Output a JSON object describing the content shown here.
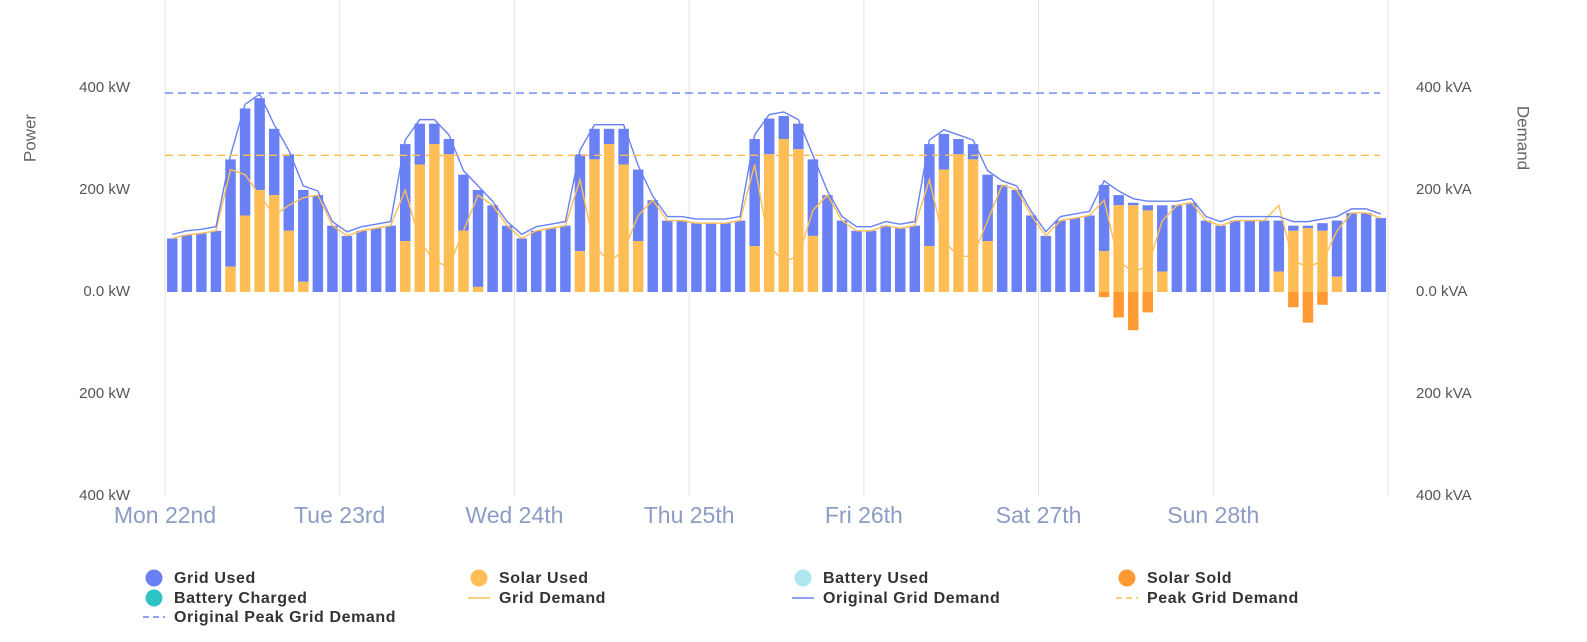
{
  "chart_data": {
    "type": "bar",
    "ylabel": "Power",
    "y2label": "Demand",
    "xlim": [
      0,
      168
    ],
    "xticks": [
      {
        "value": 0,
        "label": "Mon 22nd"
      },
      {
        "value": 24,
        "label": "Tue 23rd"
      },
      {
        "value": 48,
        "label": "Wed 24th"
      },
      {
        "value": 72,
        "label": "Thu 25th"
      },
      {
        "value": 96,
        "label": "Fri 26th"
      },
      {
        "value": 120,
        "label": "Sat 27th"
      },
      {
        "value": 144,
        "label": "Sun 28th"
      }
    ],
    "ylim": [
      -400,
      400
    ],
    "yticks": [
      {
        "value": 400,
        "label": "400 kW"
      },
      {
        "value": 200,
        "label": "200 kW"
      },
      {
        "value": 0,
        "label": "0.0 kW"
      },
      {
        "value": -200,
        "label": "200 kW"
      },
      {
        "value": -400,
        "label": "400 kW"
      }
    ],
    "y2lim": [
      -400,
      400
    ],
    "y2ticks": [
      {
        "value": 400,
        "label": "400 kVA"
      },
      {
        "value": 200,
        "label": "200 kVA"
      },
      {
        "value": 0,
        "label": "0.0 kVA"
      },
      {
        "value": -200,
        "label": "200 kVA"
      },
      {
        "value": -400,
        "label": "400 kVA"
      }
    ],
    "grid": true,
    "x": [
      1,
      3,
      5,
      7,
      9,
      11,
      13,
      15,
      17,
      19,
      21,
      23,
      25,
      27,
      29,
      31,
      33,
      35,
      37,
      39,
      41,
      43,
      45,
      47,
      49,
      51,
      53,
      55,
      57,
      59,
      61,
      63,
      65,
      67,
      69,
      71,
      73,
      75,
      77,
      79,
      81,
      83,
      85,
      87,
      89,
      91,
      93,
      95,
      97,
      99,
      101,
      103,
      105,
      107,
      109,
      111,
      113,
      115,
      117,
      119,
      121,
      123,
      125,
      127,
      129,
      131,
      133,
      135,
      137,
      139,
      141,
      143,
      145,
      147,
      149,
      151,
      153,
      155,
      157,
      159,
      161,
      163,
      165,
      167
    ],
    "series": [
      {
        "name": "Grid Used",
        "kind": "bar",
        "color": "#6a80f5",
        "stack_on": 1,
        "values": [
          105,
          112,
          115,
          120,
          210,
          210,
          180,
          130,
          150,
          180,
          190,
          130,
          110,
          120,
          125,
          130,
          190,
          80,
          40,
          30,
          110,
          190,
          170,
          130,
          105,
          120,
          125,
          130,
          190,
          60,
          30,
          70,
          140,
          180,
          140,
          140,
          135,
          135,
          135,
          140,
          210,
          70,
          45,
          50,
          150,
          190,
          140,
          120,
          120,
          130,
          125,
          130,
          200,
          70,
          30,
          30,
          130,
          210,
          200,
          150,
          110,
          140,
          145,
          150,
          130,
          20,
          5,
          10,
          130,
          170,
          175,
          140,
          130,
          140,
          140,
          140,
          100,
          10,
          5,
          15,
          110,
          155,
          155,
          145
        ]
      },
      {
        "name": "Solar Used",
        "kind": "bar",
        "color": "#ffbe55",
        "values": [
          0,
          0,
          0,
          0,
          50,
          150,
          200,
          190,
          120,
          20,
          0,
          0,
          0,
          0,
          0,
          0,
          100,
          250,
          290,
          270,
          120,
          10,
          0,
          0,
          0,
          0,
          0,
          0,
          80,
          260,
          290,
          250,
          100,
          0,
          0,
          0,
          0,
          0,
          0,
          0,
          90,
          270,
          300,
          280,
          110,
          0,
          0,
          0,
          0,
          0,
          0,
          0,
          90,
          240,
          270,
          260,
          100,
          0,
          0,
          0,
          0,
          0,
          0,
          0,
          80,
          170,
          170,
          160,
          40,
          0,
          0,
          0,
          0,
          0,
          0,
          0,
          40,
          120,
          125,
          120,
          30,
          0,
          0,
          0
        ]
      },
      {
        "name": "Battery Used",
        "kind": "bar",
        "color": "#aee8ec",
        "values": [
          0,
          0,
          0,
          0,
          0,
          0,
          0,
          0,
          0,
          0,
          0,
          0,
          0,
          0,
          0,
          0,
          0,
          0,
          0,
          0,
          0,
          0,
          0,
          0,
          0,
          0,
          0,
          0,
          0,
          0,
          0,
          0,
          0,
          0,
          0,
          0,
          0,
          0,
          0,
          0,
          0,
          0,
          0,
          0,
          0,
          0,
          0,
          0,
          0,
          0,
          0,
          0,
          0,
          0,
          0,
          0,
          0,
          0,
          0,
          0,
          0,
          0,
          0,
          0,
          0,
          0,
          0,
          0,
          0,
          0,
          0,
          0,
          0,
          0,
          0,
          0,
          0,
          0,
          0,
          0,
          0,
          0,
          0,
          0
        ]
      },
      {
        "name": "Solar Sold",
        "kind": "bar",
        "color": "#ff9a33",
        "values": [
          0,
          0,
          0,
          0,
          0,
          0,
          0,
          0,
          0,
          0,
          0,
          0,
          0,
          0,
          0,
          0,
          0,
          0,
          0,
          0,
          0,
          0,
          0,
          0,
          0,
          0,
          0,
          0,
          0,
          0,
          0,
          0,
          0,
          0,
          0,
          0,
          0,
          0,
          0,
          0,
          0,
          0,
          0,
          0,
          0,
          0,
          0,
          0,
          0,
          0,
          0,
          0,
          0,
          0,
          0,
          0,
          0,
          0,
          0,
          0,
          0,
          0,
          0,
          0,
          -10,
          -50,
          -75,
          -40,
          0,
          0,
          0,
          0,
          0,
          0,
          0,
          0,
          0,
          -30,
          -60,
          -25,
          0,
          0,
          0,
          0
        ]
      },
      {
        "name": "Battery Charged",
        "kind": "bar",
        "color": "#2ec4c6",
        "values": [
          0,
          0,
          0,
          0,
          0,
          0,
          0,
          0,
          0,
          0,
          0,
          0,
          0,
          0,
          0,
          0,
          0,
          0,
          0,
          0,
          0,
          0,
          0,
          0,
          0,
          0,
          0,
          0,
          0,
          0,
          0,
          0,
          0,
          0,
          0,
          0,
          0,
          0,
          0,
          0,
          0,
          0,
          0,
          0,
          0,
          0,
          0,
          0,
          0,
          0,
          0,
          0,
          0,
          0,
          0,
          0,
          0,
          0,
          0,
          0,
          0,
          0,
          0,
          0,
          0,
          0,
          0,
          0,
          0,
          0,
          0,
          0,
          0,
          0,
          0,
          0,
          0,
          0,
          0,
          0,
          0,
          0,
          0,
          0
        ]
      },
      {
        "name": "Grid Demand",
        "kind": "line",
        "axis": "y2",
        "color": "#ffbe55",
        "values": [
          105,
          112,
          115,
          120,
          240,
          230,
          190,
          150,
          170,
          185,
          190,
          130,
          110,
          120,
          125,
          130,
          200,
          100,
          60,
          50,
          120,
          190,
          170,
          130,
          105,
          120,
          125,
          130,
          220,
          90,
          60,
          80,
          150,
          180,
          140,
          140,
          135,
          135,
          135,
          140,
          250,
          90,
          60,
          70,
          160,
          190,
          140,
          120,
          120,
          130,
          125,
          130,
          220,
          100,
          70,
          70,
          140,
          210,
          200,
          150,
          110,
          140,
          145,
          150,
          180,
          60,
          40,
          50,
          140,
          170,
          175,
          140,
          130,
          140,
          140,
          140,
          170,
          60,
          50,
          60,
          120,
          155,
          155,
          145
        ]
      },
      {
        "name": "Original Grid Demand",
        "kind": "line",
        "axis": "y2",
        "color": "#6a80f5",
        "values": [
          113,
          120,
          123,
          128,
          268,
          368,
          388,
          328,
          278,
          208,
          198,
          138,
          118,
          128,
          133,
          138,
          298,
          338,
          338,
          308,
          238,
          208,
          178,
          138,
          113,
          128,
          133,
          138,
          278,
          328,
          328,
          328,
          248,
          188,
          148,
          148,
          143,
          143,
          143,
          148,
          308,
          348,
          353,
          338,
          268,
          198,
          148,
          128,
          128,
          138,
          133,
          138,
          298,
          318,
          308,
          298,
          238,
          218,
          208,
          158,
          118,
          148,
          153,
          158,
          218,
          198,
          183,
          178,
          178,
          178,
          183,
          148,
          138,
          148,
          148,
          148,
          148,
          138,
          138,
          143,
          148,
          163,
          163,
          153
        ]
      }
    ],
    "reference_lines": [
      {
        "name": "Peak Grid Demand",
        "axis": "y2",
        "color": "#ffbe55",
        "dashed": true,
        "value": 268
      },
      {
        "name": "Original Peak Grid Demand",
        "axis": "y2",
        "color": "#6a80f5",
        "dashed": true,
        "value": 390
      }
    ]
  }
}
